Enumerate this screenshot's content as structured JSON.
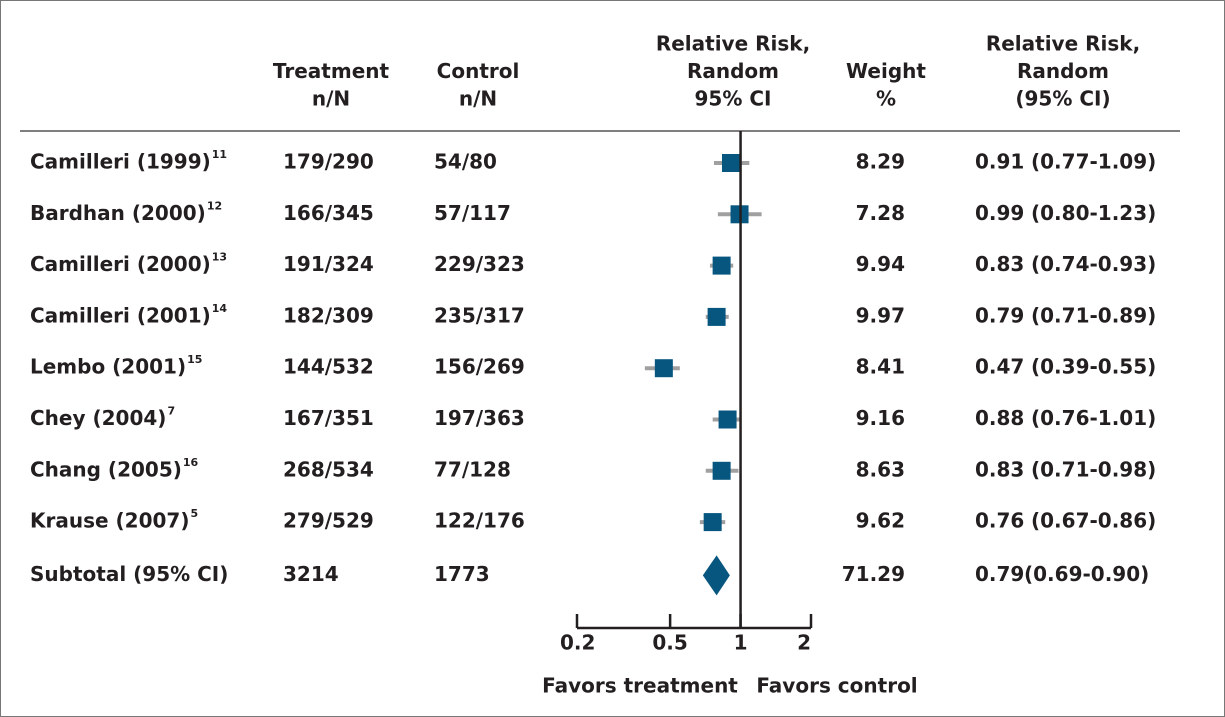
{
  "chart_data": {
    "type": "forest",
    "headers": {
      "treatment": [
        "Treatment",
        "n/N"
      ],
      "control": [
        "Control",
        "n/N"
      ],
      "plot": [
        "Relative Risk,",
        "Random",
        "95% CI"
      ],
      "weight": [
        "Weight",
        "%"
      ],
      "estimate": [
        "Relative Risk,",
        "Random",
        "(95% CI)"
      ]
    },
    "categories": [
      "Camilleri (1999)",
      "Bardhan (2000)",
      "Camilleri (2000)",
      "Camilleri (2001)",
      "Lembo (2001)",
      "Chey (2004)",
      "Chang (2005)",
      "Krause (2007)"
    ],
    "refs": [
      "11",
      "12",
      "13",
      "14",
      "15",
      "7",
      "16",
      "5"
    ],
    "treatment": [
      "179/290",
      "166/345",
      "191/324",
      "182/309",
      "144/532",
      "167/351",
      "268/534",
      "279/529"
    ],
    "control": [
      "54/80",
      "57/117",
      "229/323",
      "235/317",
      "156/269",
      "197/363",
      "77/128",
      "122/176"
    ],
    "values": [
      0.91,
      0.99,
      0.83,
      0.79,
      0.47,
      0.88,
      0.83,
      0.76
    ],
    "value_labels": [
      "0.91",
      "0.99",
      "0.83",
      "0.79",
      "0.47",
      "0.88",
      "0.83",
      "0.76"
    ],
    "ci_low": [
      0.77,
      0.8,
      0.74,
      0.71,
      0.39,
      0.76,
      0.71,
      0.67
    ],
    "ci_high": [
      1.09,
      1.23,
      0.93,
      0.89,
      0.55,
      1.01,
      0.98,
      0.86
    ],
    "ci_labels": [
      "(0.77-1.09)",
      "(0.80-1.23)",
      "(0.74-0.93)",
      "(0.71-0.89)",
      "(0.39-0.55)",
      "(0.76-1.01)",
      "(0.71-0.98)",
      "(0.67-0.86)"
    ],
    "weights": [
      8.29,
      7.28,
      9.94,
      9.97,
      8.41,
      9.16,
      8.63,
      9.62
    ],
    "subtotal": {
      "label": "Subtotal (95% CI)",
      "treatment": "3214",
      "control": "1773",
      "value": 0.79,
      "value_label": "0.79",
      "ci_low": 0.69,
      "ci_high": 0.9,
      "ci_label": "(0.69-0.90)",
      "weight": 71.29
    },
    "log_scale": true,
    "xlim": [
      0.2,
      2
    ],
    "xticks": [
      0.2,
      0.5,
      1,
      2
    ],
    "reference": 1,
    "xlabels": [
      "Favors treatment",
      "Favors control"
    ],
    "color": "#07567f",
    "ci_color": "#a0a0a0"
  }
}
